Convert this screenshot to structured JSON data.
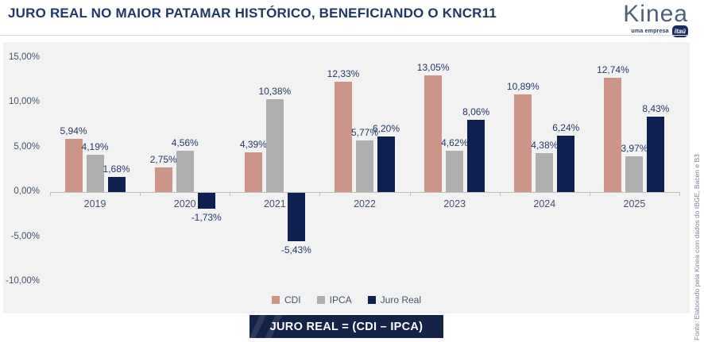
{
  "header": {
    "title": "JURO REAL NO MAIOR PATAMAR HISTÓRICO, BENEFICIANDO O KNCR11",
    "brand": {
      "name": "Kinea",
      "tagline": "uma empresa",
      "badge": "itaú"
    }
  },
  "chart_data": {
    "type": "bar",
    "title": "JURO REAL NO MAIOR PATAMAR HISTÓRICO, BENEFICIANDO O KNCR11",
    "categories": [
      "2019",
      "2020",
      "2021",
      "2022",
      "2023",
      "2024",
      "2025"
    ],
    "series": [
      {
        "name": "CDI",
        "color": "#cc9587",
        "values": [
          5.94,
          2.75,
          4.39,
          12.33,
          13.05,
          10.89,
          12.74
        ],
        "labels": [
          "5,94%",
          "2,75%",
          "4,39%",
          "12,33%",
          "13,05%",
          "10,89%",
          "12,74%"
        ]
      },
      {
        "name": "IPCA",
        "color": "#aeaeae",
        "values": [
          4.19,
          4.56,
          10.38,
          5.77,
          4.62,
          4.38,
          3.97
        ],
        "labels": [
          "4,19%",
          "4,56%",
          "10,38%",
          "5,77%",
          "4,62%",
          "4,38%",
          "3,97%"
        ]
      },
      {
        "name": "Juro Real",
        "color": "#0e2050",
        "values": [
          1.68,
          -1.73,
          -5.43,
          6.2,
          8.06,
          6.24,
          8.43
        ],
        "labels": [
          "1,68%",
          "-1,73%",
          "-5,43%",
          "6,20%",
          "8,06%",
          "6,24%",
          "8,43%"
        ]
      }
    ],
    "ylim": [
      -10,
      15
    ],
    "yticks": [
      {
        "value": 15,
        "label": "15,00%"
      },
      {
        "value": 10,
        "label": "10,00%"
      },
      {
        "value": 5,
        "label": "5,00%"
      },
      {
        "value": 0,
        "label": "0,00%"
      },
      {
        "value": -5,
        "label": "-5,00%"
      },
      {
        "value": -10,
        "label": "-10,00%"
      }
    ],
    "grid": false,
    "legend_position": "bottom"
  },
  "footer": {
    "formula": "JURO REAL = (CDI – IPCA)"
  },
  "source": "Fonte: Elaborado pela Kinea com dados do IBGE, Bacen e B3",
  "colors": {
    "title": "#1f3864",
    "panel_background": "#f2f2f2",
    "axis": "#bfbfbf",
    "axis_text": "#44546a",
    "value_label": "#253a63",
    "formula_box": "#152247",
    "cdi": "#cc9587",
    "ipca": "#aeaeae",
    "juro_real": "#0e2050"
  }
}
